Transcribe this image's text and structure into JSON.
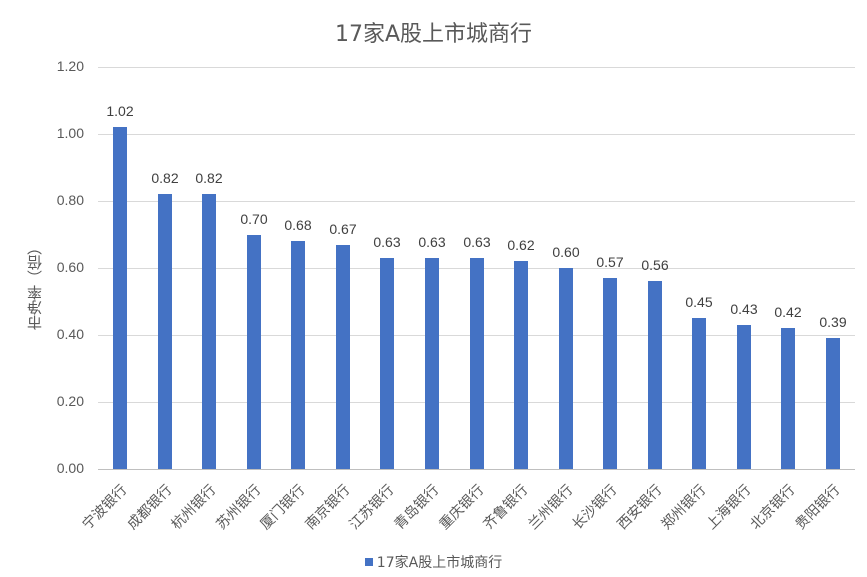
{
  "chart_data": {
    "type": "bar",
    "title": "17家A股上市城商行",
    "xlabel": "",
    "ylabel": "市净率（倍）",
    "ylim": [
      0,
      1.2
    ],
    "yticks": [
      "0.00",
      "0.20",
      "0.40",
      "0.60",
      "0.80",
      "1.00",
      "1.20"
    ],
    "grid": true,
    "legend_position": "bottom",
    "categories": [
      "宁波银行",
      "成都银行",
      "杭州银行",
      "苏州银行",
      "厦门银行",
      "南京银行",
      "江苏银行",
      "青岛银行",
      "重庆银行",
      "齐鲁银行",
      "兰州银行",
      "长沙银行",
      "西安银行",
      "郑州银行",
      "上海银行",
      "北京银行",
      "贵阳银行"
    ],
    "series": [
      {
        "name": "17家A股上市城商行",
        "color": "#4472c4",
        "values": [
          1.02,
          0.82,
          0.82,
          0.7,
          0.68,
          0.67,
          0.63,
          0.63,
          0.63,
          0.62,
          0.6,
          0.57,
          0.56,
          0.45,
          0.43,
          0.42,
          0.39
        ],
        "labels": [
          "1.02",
          "0.82",
          "0.82",
          "0.70",
          "0.68",
          "0.67",
          "0.63",
          "0.63",
          "0.63",
          "0.62",
          "0.60",
          "0.57",
          "0.56",
          "0.45",
          "0.43",
          "0.42",
          "0.39"
        ]
      }
    ]
  }
}
